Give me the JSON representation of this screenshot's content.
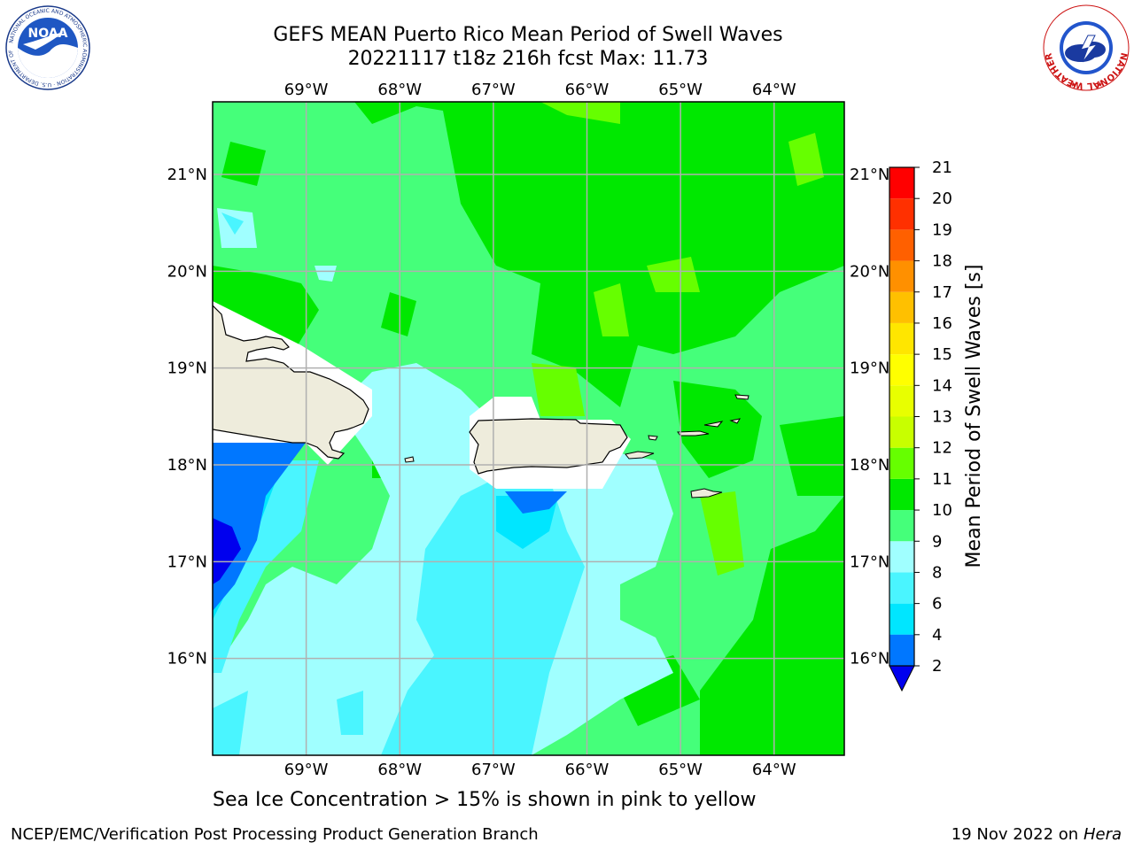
{
  "title": {
    "line1": "GEFS MEAN Puerto Rico Mean Period of Swell Waves",
    "line2": "20221117 t18z 216h fcst   Max: 11.73"
  },
  "map": {
    "lon_ticks": [
      "69°W",
      "68°W",
      "67°W",
      "66°W",
      "65°W",
      "64°W"
    ],
    "lat_ticks": [
      "21°N",
      "20°N",
      "19°N",
      "18°N",
      "17°N",
      "16°N"
    ],
    "lon_range": [
      -70,
      -63.25
    ],
    "lat_range": [
      15,
      21.75
    ],
    "grid": true
  },
  "colorbar": {
    "label": "Mean Period of Swell Waves [s]",
    "ticks": [
      "21",
      "20",
      "19",
      "18",
      "17",
      "16",
      "15",
      "14",
      "13",
      "12",
      "11",
      "10",
      "9",
      "8",
      "6",
      "4",
      "2"
    ],
    "levels": [
      2,
      4,
      6,
      8,
      9,
      10,
      11,
      12,
      13,
      14,
      15,
      16,
      17,
      18,
      19,
      20,
      21
    ],
    "colors": [
      "#0000ee",
      "#0077ff",
      "#00e6ff",
      "#4af5ff",
      "#a0ffff",
      "#45ff7a",
      "#00e800",
      "#66ff00",
      "#c8ff00",
      "#e8ff00",
      "#ffff00",
      "#ffe600",
      "#ffc000",
      "#ff9000",
      "#ff6000",
      "#ff3000",
      "#ff0000"
    ],
    "extend_min_color": "#0000ee"
  },
  "caption": "Sea Ice Concentration > 15% is shown in pink to yellow",
  "footer": {
    "left": "NCEP/EMC/Verification Post Processing Product Generation Branch",
    "date": "19 Nov 2022 on",
    "machine": "Hera"
  },
  "logos": {
    "noaa_text": "NOAA",
    "noaa_ring": "NATIONAL OCEANIC AND ATMOSPHERIC ADMINISTRATION · U.S. DEPARTMENT OF COMMERCE",
    "nws_ring": "NATIONAL WEATHER SERVICE"
  }
}
